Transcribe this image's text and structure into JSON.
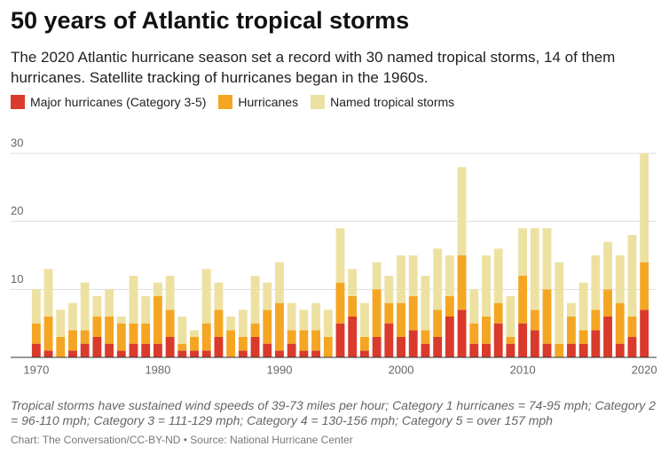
{
  "chart_data": {
    "type": "stacked-bar",
    "title": "50 years of Atlantic tropical storms",
    "subtitle": "The 2020 Atlantic hurricane season set a record with 30 named tropical storms, 14 of them hurricanes. Satellite tracking of hurricanes began in the 1960s.",
    "x": [
      1970,
      1971,
      1972,
      1973,
      1974,
      1975,
      1976,
      1977,
      1978,
      1979,
      1980,
      1981,
      1982,
      1983,
      1984,
      1985,
      1986,
      1987,
      1988,
      1989,
      1990,
      1991,
      1992,
      1993,
      1994,
      1995,
      1996,
      1997,
      1998,
      1999,
      2000,
      2001,
      2002,
      2003,
      2004,
      2005,
      2006,
      2007,
      2008,
      2009,
      2010,
      2011,
      2012,
      2013,
      2014,
      2015,
      2016,
      2017,
      2018,
      2019,
      2020
    ],
    "series": [
      {
        "name": "Major hurricanes (Category 3-5)",
        "color": "#d93a2b",
        "values": [
          2,
          1,
          0,
          1,
          2,
          3,
          2,
          1,
          2,
          2,
          2,
          3,
          1,
          1,
          1,
          3,
          0,
          1,
          3,
          2,
          1,
          2,
          1,
          1,
          0,
          5,
          6,
          1,
          3,
          5,
          3,
          4,
          2,
          3,
          6,
          7,
          2,
          2,
          5,
          2,
          5,
          4,
          2,
          0,
          2,
          2,
          4,
          6,
          2,
          3,
          7
        ]
      },
      {
        "name": "Hurricanes",
        "color": "#f4a623",
        "values": [
          3,
          5,
          3,
          3,
          2,
          3,
          4,
          4,
          3,
          3,
          7,
          4,
          1,
          2,
          4,
          4,
          4,
          2,
          2,
          5,
          7,
          2,
          3,
          3,
          3,
          6,
          3,
          2,
          7,
          3,
          5,
          5,
          2,
          4,
          3,
          8,
          3,
          4,
          3,
          1,
          7,
          3,
          8,
          2,
          4,
          2,
          3,
          4,
          6,
          3,
          7
        ]
      },
      {
        "name": "Named tropical storms",
        "color": "#ede1a2",
        "values": [
          5,
          7,
          4,
          4,
          7,
          3,
          4,
          1,
          7,
          4,
          2,
          5,
          4,
          1,
          8,
          4,
          2,
          4,
          7,
          4,
          6,
          4,
          3,
          4,
          4,
          8,
          4,
          5,
          4,
          4,
          7,
          6,
          8,
          9,
          6,
          13,
          5,
          9,
          8,
          6,
          7,
          12,
          9,
          12,
          2,
          7,
          8,
          7,
          7,
          12,
          16
        ]
      }
    ],
    "xlim": [
      1969.5,
      2020.5
    ],
    "xticks": [
      1970,
      1980,
      1990,
      2000,
      2010,
      2020
    ],
    "ylim": [
      0,
      30
    ],
    "yticks": [
      10,
      20,
      30
    ],
    "grid": true,
    "footnote": "Tropical storms have sustained wind speeds of 39-73 miles per hour; Category 1 hurricanes = 74-95 mph; Category 2 = 96-110 mph; Category 3 = 111-129 mph; Category 4 = 130-156 mph; Category 5 = over 157 mph",
    "credit": "Chart: The Conversation/CC-BY-ND • Source: National Hurricane Center"
  }
}
